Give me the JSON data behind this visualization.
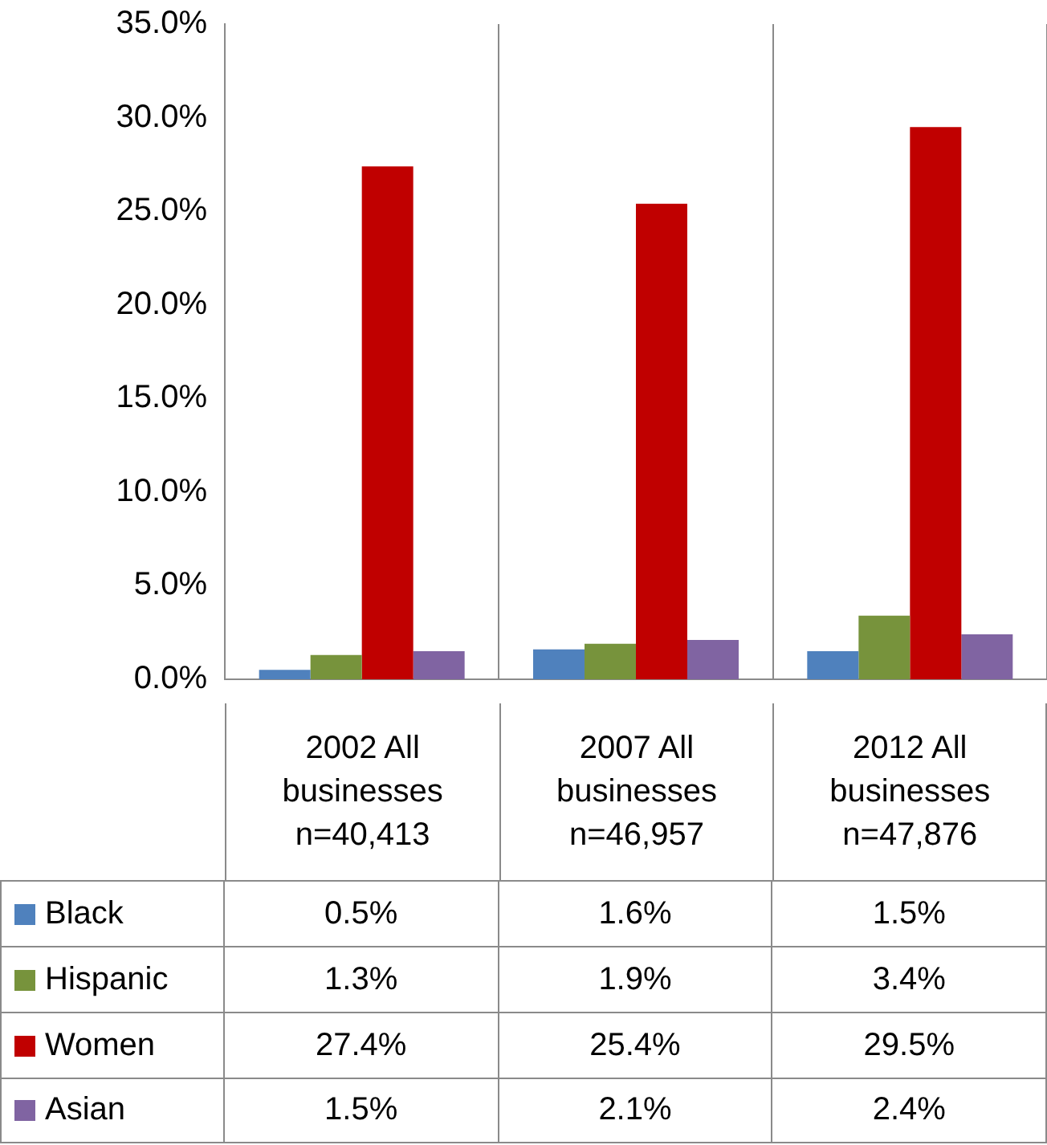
{
  "chart_data": {
    "type": "bar",
    "categories": [
      "2002 All businesses n=40,413",
      "2007 All businesses n=46,957",
      "2012 All businesses n=47,876"
    ],
    "series": [
      {
        "name": "Black",
        "color": "#4f81bd",
        "values": [
          0.5,
          1.6,
          1.5
        ],
        "value_labels": [
          "0.5%",
          "1.6%",
          "1.5%"
        ]
      },
      {
        "name": "Hispanic",
        "color": "#77933c",
        "values": [
          1.3,
          1.9,
          3.4
        ],
        "value_labels": [
          "1.3%",
          "1.9%",
          "3.4%"
        ]
      },
      {
        "name": "Women",
        "color": "#c00000",
        "values": [
          27.4,
          25.4,
          29.5
        ],
        "value_labels": [
          "27.4%",
          "25.4%",
          "29.5%"
        ]
      },
      {
        "name": "Asian",
        "color": "#8064a2",
        "values": [
          1.5,
          2.1,
          2.4
        ],
        "value_labels": [
          "1.5%",
          "2.1%",
          "2.4%"
        ]
      }
    ],
    "ylim": [
      0,
      35
    ],
    "yticks": [
      {
        "value": 0,
        "label": "0.0%"
      },
      {
        "value": 5,
        "label": "5.0%"
      },
      {
        "value": 10,
        "label": "10.0%"
      },
      {
        "value": 15,
        "label": "15.0%"
      },
      {
        "value": 20,
        "label": "20.0%"
      },
      {
        "value": 25,
        "label": "25.0%"
      },
      {
        "value": 30,
        "label": "30.0%"
      },
      {
        "value": 35,
        "label": "35.0%"
      }
    ],
    "grid": "x",
    "legend": "bottom left"
  }
}
